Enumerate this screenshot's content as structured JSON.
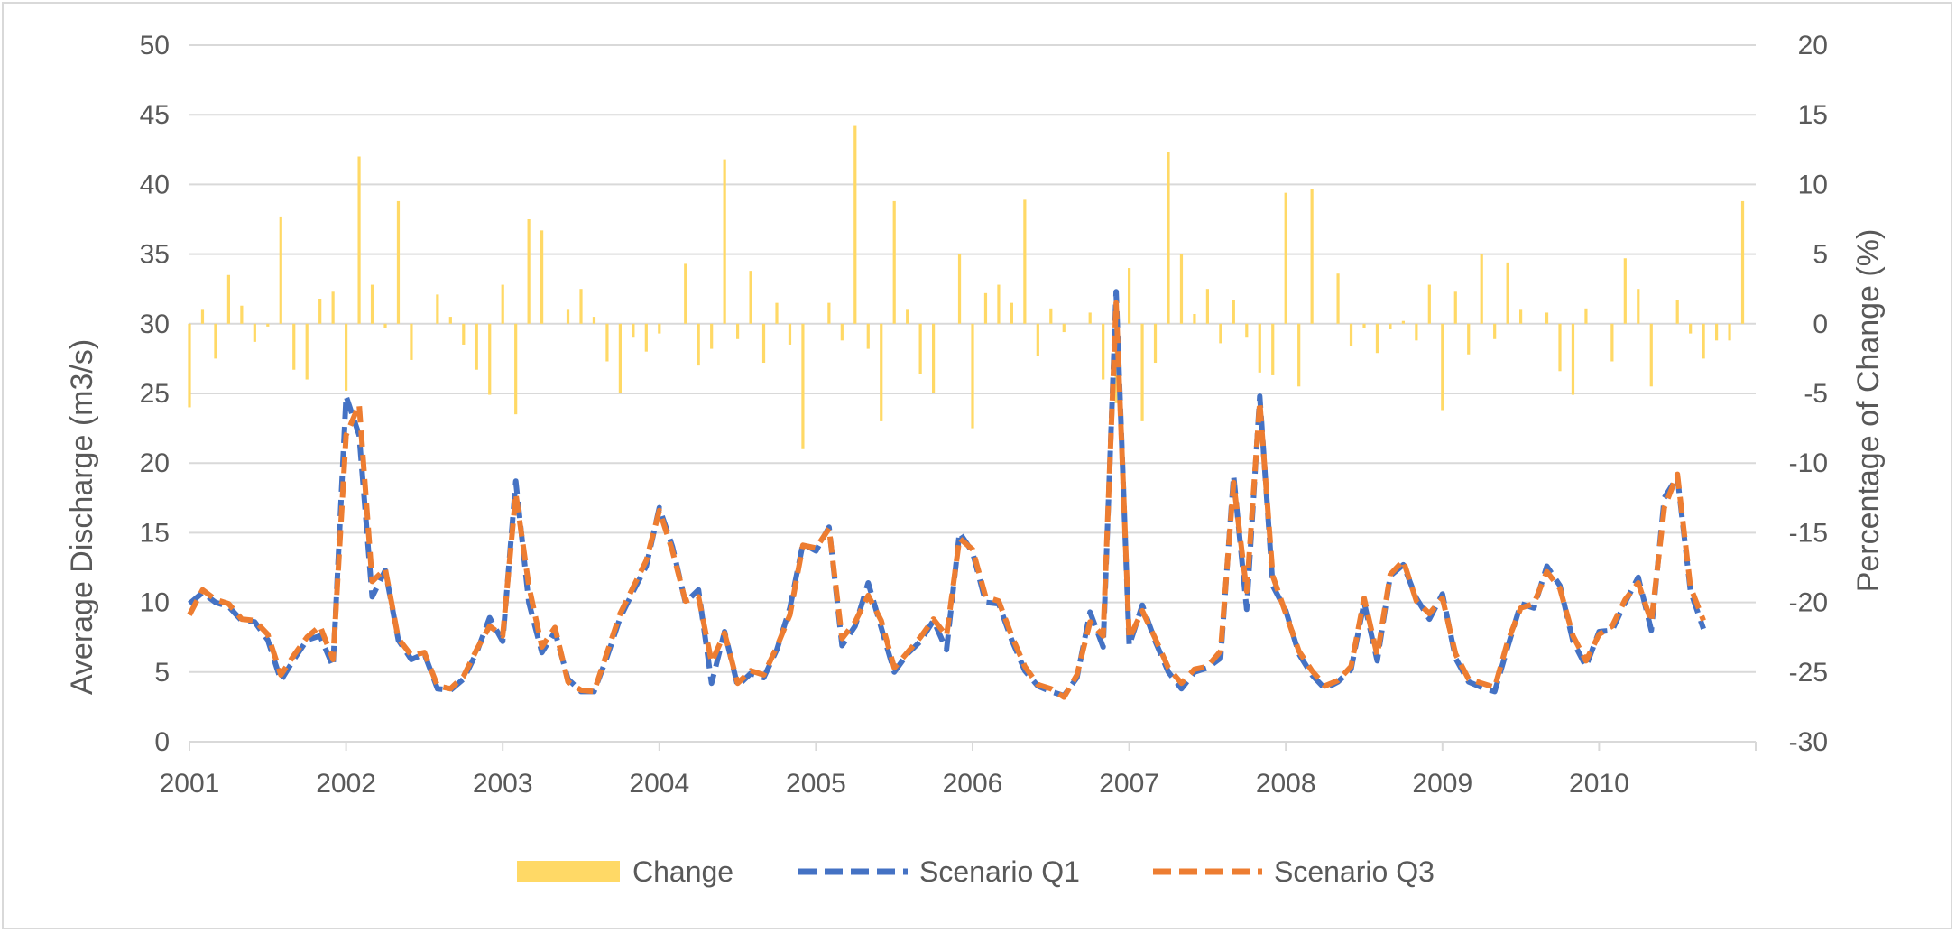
{
  "chart_data": {
    "type": "bar+line",
    "title": "",
    "x_axis": {
      "tick_labels": [
        "2001",
        "2002",
        "2003",
        "2004",
        "2005",
        "2006",
        "2007",
        "2008",
        "2009",
        "2010"
      ],
      "range": [
        2001.0,
        2011.0
      ]
    },
    "y_left": {
      "label": "Average Discharge (m3/s)",
      "range": [
        0,
        50
      ],
      "ticks": [
        "0",
        "5",
        "10",
        "15",
        "20",
        "25",
        "30",
        "35",
        "40",
        "45",
        "50"
      ]
    },
    "y_right": {
      "label": "Percentage of Change (%)",
      "range": [
        -30,
        20
      ],
      "ticks": [
        "-30",
        "-25",
        "-20",
        "-15",
        "-10",
        "-5",
        "0",
        "5",
        "10",
        "15",
        "20"
      ]
    },
    "grid": true,
    "legend_position": "bottom",
    "colors": {
      "change": "#ffd966",
      "q1": "#4472c4",
      "q3": "#ed7d31",
      "grid": "#d9d9d9",
      "text": "#595959"
    },
    "legend": {
      "change": "Change",
      "q1": "Scenario Q1",
      "q3": "Scenario Q3"
    },
    "series": [
      {
        "name": "Change",
        "type": "bar",
        "axis": "right",
        "values": [
          -6,
          1,
          -2.5,
          3.5,
          1.3,
          -1.3,
          -0.2,
          7.7,
          -3.3,
          -4,
          1.8,
          2.3,
          -4.8,
          12,
          2.8,
          -0.3,
          8.8,
          -2.6,
          0,
          2.1,
          0.5,
          -1.5,
          -3.3,
          -5.1,
          2.8,
          -6.5,
          7.5,
          6.7,
          0,
          1,
          2.5,
          0.5,
          -2.7,
          -5,
          -1,
          -2,
          -0.7,
          0,
          4.3,
          -3,
          -1.8,
          11.8,
          -1.1,
          3.8,
          -2.8,
          1.5,
          -1.5,
          -9,
          0,
          1.5,
          -1.2,
          14.2,
          -1.8,
          -7,
          8.8,
          1,
          -3.6,
          -5,
          0,
          5,
          -7.5,
          2.2,
          2.8,
          1.5,
          8.9,
          -2.3,
          1.1,
          -0.6,
          0,
          0.8,
          -4,
          -5.7,
          4,
          -7,
          -2.8,
          12.3,
          5,
          0.7,
          2.5,
          -1.4,
          1.7,
          -1,
          -3.5,
          -3.7,
          9.4,
          -4.5,
          9.7,
          0,
          3.6,
          -1.6,
          -0.3,
          -2.1,
          -0.4,
          0.2,
          -1.2,
          2.8,
          -6.2,
          2.3,
          -2.2,
          5,
          -1.1,
          4.4,
          1,
          0,
          0.8,
          -3.4,
          -5.1,
          1.1,
          0,
          -2.7,
          4.7,
          2.5,
          -4.5,
          0,
          1.7,
          -0.7,
          -2.5,
          -1.2,
          -1.2,
          8.8
        ]
      },
      {
        "name": "Scenario Q1",
        "type": "line",
        "axis": "left",
        "values": [
          9.9,
          10.7,
          10,
          9.7,
          8.7,
          8.6,
          7.3,
          4.4,
          5.9,
          7.3,
          7.6,
          5.4,
          24.8,
          22,
          10.4,
          12.3,
          7.3,
          5.9,
          6.3,
          3.8,
          3.7,
          4.5,
          6.4,
          8.9,
          7.2,
          18.7,
          10,
          6.4,
          7.9,
          4.5,
          3.6,
          3.6,
          6.1,
          8.9,
          10.8,
          12.6,
          16.8,
          14,
          10,
          10.9,
          4.2,
          7.9,
          4,
          4.9,
          4.6,
          6.6,
          9.6,
          14.2,
          13.7,
          15.4,
          6.9,
          8.3,
          11.4,
          8.2,
          5,
          6.3,
          7.2,
          8.7,
          6.6,
          15,
          13.6,
          10,
          9.9,
          7.3,
          5.1,
          4,
          3.6,
          3.3,
          4.6,
          9.3,
          6.8,
          32.3,
          6.9,
          9.8,
          7.2,
          5,
          3.8,
          5,
          5.3,
          6,
          19.1,
          9.5,
          24.8,
          11.2,
          9.4,
          6.3,
          4.8,
          3.8,
          4.3,
          5.2,
          10,
          5.8,
          11.9,
          12.7,
          10.3,
          8.8,
          10.6,
          6,
          4.3,
          3.9,
          3.6,
          6.8,
          9.9,
          9.6,
          12.6,
          11.2,
          7.2,
          5.4,
          7.9,
          8,
          10,
          11.8,
          8,
          17.5,
          19,
          10.8,
          8.1
        ]
      },
      {
        "name": "Scenario Q3",
        "type": "line",
        "axis": "left",
        "values": [
          9.1,
          10.9,
          10.2,
          9.9,
          8.8,
          8.7,
          7.7,
          4.8,
          6.2,
          7.5,
          8.3,
          5.9,
          22,
          24.2,
          11.5,
          12.4,
          7.4,
          6.2,
          6.4,
          4,
          3.8,
          4.7,
          6.6,
          8.3,
          7.6,
          17.8,
          11.2,
          6.8,
          8.2,
          4.3,
          3.7,
          3.6,
          6.4,
          9.2,
          11.1,
          13,
          16.6,
          13.7,
          10.1,
          10.4,
          5.7,
          7.8,
          4.2,
          5.1,
          4.8,
          6.8,
          9.1,
          14.1,
          13.9,
          15.3,
          7.4,
          8.6,
          10.5,
          8.7,
          5.3,
          6.4,
          7.5,
          8.8,
          7.6,
          14.6,
          13.8,
          10.4,
          10.1,
          7.6,
          5.4,
          4.1,
          3.8,
          3.2,
          4.8,
          8.6,
          7.6,
          31.5,
          7.4,
          9.4,
          7.4,
          5.3,
          4.2,
          5.2,
          5.4,
          6.5,
          18.6,
          10.8,
          24.4,
          11.9,
          9.2,
          6.5,
          5.1,
          4,
          4.4,
          5.4,
          10.3,
          6.2,
          12,
          13,
          10.1,
          9.2,
          10.3,
          6.3,
          4.5,
          4.2,
          3.9,
          7.2,
          9.6,
          9.9,
          12.2,
          11,
          7.6,
          5.8,
          7.7,
          8.3,
          10.2,
          11.4,
          8.6,
          16.8,
          19.2,
          11.1,
          8.7
        ]
      }
    ]
  }
}
